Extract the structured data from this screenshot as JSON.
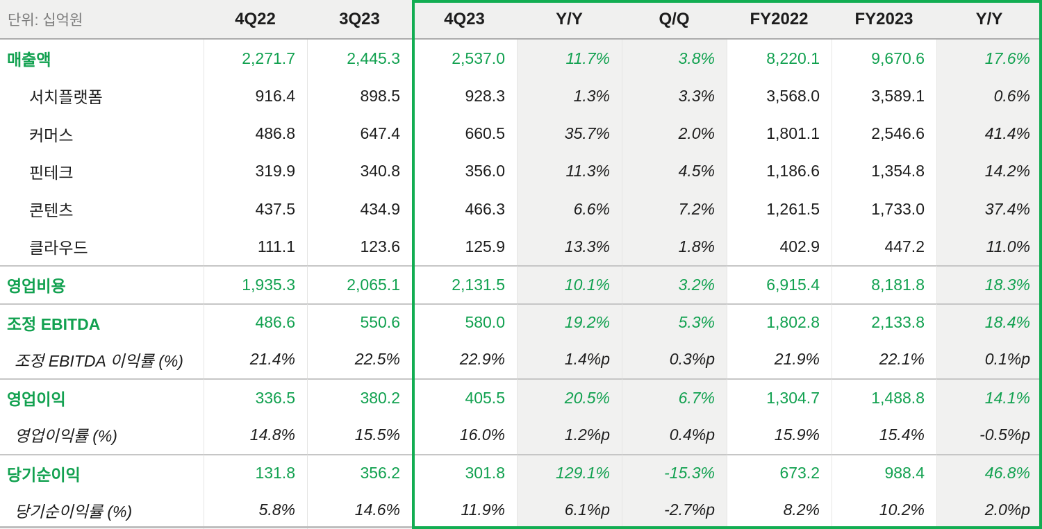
{
  "colors": {
    "accent_green_text": "#12a150",
    "highlight_border_green": "#12ad52",
    "header_bg": "#f0f0ef",
    "shaded_column_bg": "#f1f1f0",
    "section_divider": "#c6c6c6",
    "unit_text": "#7b7b7b"
  },
  "chart_data": {
    "type": "table",
    "unit_label": "단위: 십억원",
    "columns": [
      "4Q22",
      "3Q23",
      "4Q23",
      "Y/Y",
      "Q/Q",
      "FY2022",
      "FY2023",
      "Y/Y"
    ],
    "highlighted_columns": [
      "4Q23",
      "Y/Y",
      "Q/Q",
      "FY2022",
      "FY2023",
      "Y/Y"
    ],
    "shaded_columns": [
      "Y/Y",
      "Q/Q",
      "Y/Y"
    ],
    "rows": [
      {
        "label": "매출액",
        "kind": "primary",
        "values": [
          "2,271.7",
          "2,445.3",
          "2,537.0",
          "11.7%",
          "3.8%",
          "8,220.1",
          "9,670.6",
          "17.6%"
        ]
      },
      {
        "label": "서치플랫폼",
        "kind": "sub",
        "values": [
          "916.4",
          "898.5",
          "928.3",
          "1.3%",
          "3.3%",
          "3,568.0",
          "3,589.1",
          "0.6%"
        ]
      },
      {
        "label": "커머스",
        "kind": "sub",
        "values": [
          "486.8",
          "647.4",
          "660.5",
          "35.7%",
          "2.0%",
          "1,801.1",
          "2,546.6",
          "41.4%"
        ]
      },
      {
        "label": "핀테크",
        "kind": "sub",
        "values": [
          "319.9",
          "340.8",
          "356.0",
          "11.3%",
          "4.5%",
          "1,186.6",
          "1,354.8",
          "14.2%"
        ]
      },
      {
        "label": "콘텐츠",
        "kind": "sub",
        "values": [
          "437.5",
          "434.9",
          "466.3",
          "6.6%",
          "7.2%",
          "1,261.5",
          "1,733.0",
          "37.4%"
        ]
      },
      {
        "label": "클라우드",
        "kind": "sub",
        "values": [
          "111.1",
          "123.6",
          "125.9",
          "13.3%",
          "1.8%",
          "402.9",
          "447.2",
          "11.0%"
        ]
      },
      {
        "label": "영업비용",
        "kind": "primary",
        "values": [
          "1,935.3",
          "2,065.1",
          "2,131.5",
          "10.1%",
          "3.2%",
          "6,915.4",
          "8,181.8",
          "18.3%"
        ]
      },
      {
        "label": "조정 EBITDA",
        "kind": "primary",
        "values": [
          "486.6",
          "550.6",
          "580.0",
          "19.2%",
          "5.3%",
          "1,802.8",
          "2,133.8",
          "18.4%"
        ]
      },
      {
        "label": "조정 EBITDA 이익률 (%)",
        "kind": "ratio",
        "values": [
          "21.4%",
          "22.5%",
          "22.9%",
          "1.4%p",
          "0.3%p",
          "21.9%",
          "22.1%",
          "0.1%p"
        ]
      },
      {
        "label": "영업이익",
        "kind": "primary",
        "values": [
          "336.5",
          "380.2",
          "405.5",
          "20.5%",
          "6.7%",
          "1,304.7",
          "1,488.8",
          "14.1%"
        ]
      },
      {
        "label": "영업이익률 (%)",
        "kind": "ratio",
        "values": [
          "14.8%",
          "15.5%",
          "16.0%",
          "1.2%p",
          "0.4%p",
          "15.9%",
          "15.4%",
          "-0.5%p"
        ]
      },
      {
        "label": "당기순이익",
        "kind": "primary",
        "values": [
          "131.8",
          "356.2",
          "301.8",
          "129.1%",
          "-15.3%",
          "673.2",
          "988.4",
          "46.8%"
        ]
      },
      {
        "label": "당기순이익률 (%)",
        "kind": "ratio",
        "values": [
          "5.8%",
          "14.6%",
          "11.9%",
          "6.1%p",
          "-2.7%p",
          "8.2%",
          "10.2%",
          "2.0%p"
        ]
      }
    ]
  }
}
